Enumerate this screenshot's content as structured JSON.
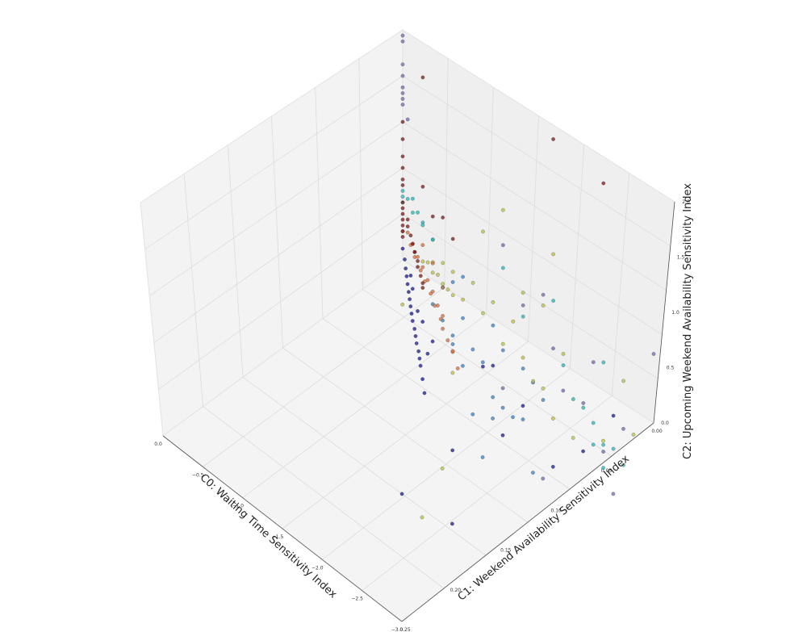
{
  "chart_data": {
    "type": "scatter",
    "projection": "3d",
    "title": "",
    "xlabel": "C0: Waiting Time Sensitivity Index",
    "ylabel": "C1: Weekend Availability Sensitivity Index",
    "zlabel": "C2: Upcoming Weekend Availability Sensitivity Index",
    "xlim": [
      -3.0,
      0.0
    ],
    "ylim": [
      0.0,
      0.25
    ],
    "zlim": [
      0.0,
      2.0
    ],
    "xticks": [
      "0.0",
      "−0.5",
      "−1.0",
      "−1.5",
      "−2.0",
      "−2.5",
      "−3.0"
    ],
    "yticks": [
      "0.00",
      "0.05",
      "0.10",
      "0.15",
      "0.20",
      "0.25"
    ],
    "zticks": [
      "0.0",
      "0.5",
      "1.0",
      "1.5",
      "2.0"
    ],
    "grid": true,
    "legend": "none",
    "colormap": "jet",
    "series": [
      {
        "color": "#1a1a8c",
        "points": [
          [
            -0.05,
            0.0,
            0.15
          ],
          [
            -0.1,
            0.002,
            0.12
          ],
          [
            -0.15,
            0.003,
            0.1
          ],
          [
            -0.2,
            0.004,
            0.09
          ],
          [
            -0.25,
            0.005,
            0.08
          ],
          [
            -0.3,
            0.006,
            0.07
          ],
          [
            -0.35,
            0.007,
            0.065
          ],
          [
            -0.4,
            0.008,
            0.06
          ],
          [
            -0.45,
            0.009,
            0.055
          ],
          [
            -0.5,
            0.01,
            0.05
          ],
          [
            -0.55,
            0.012,
            0.045
          ],
          [
            -0.6,
            0.013,
            0.04
          ],
          [
            -0.65,
            0.014,
            0.035
          ],
          [
            -0.7,
            0.016,
            0.03
          ],
          [
            -0.75,
            0.017,
            0.025
          ],
          [
            -0.8,
            0.018,
            0.02
          ],
          [
            -0.9,
            0.02,
            0.02
          ],
          [
            -1.0,
            0.022,
            0.015
          ],
          [
            -0.42,
            0.015,
            0.08
          ],
          [
            -0.5,
            0.02,
            0.1
          ],
          [
            -0.3,
            0.01,
            0.12
          ],
          [
            -0.6,
            0.03,
            0.09
          ],
          [
            -0.22,
            0.008,
            0.14
          ],
          [
            -0.7,
            0.025,
            0.06
          ],
          [
            -1.5,
            0.05,
            0.2
          ],
          [
            -2.3,
            0.05,
            0.4
          ],
          [
            -0.5,
            0.08,
            0.05
          ],
          [
            -1.2,
            0.1,
            0.3
          ],
          [
            -0.8,
            0.12,
            0.25
          ],
          [
            -1.0,
            0.15,
            0.1
          ],
          [
            -2.8,
            0.0,
            0.9
          ],
          [
            -0.9,
            0.18,
            0.3
          ],
          [
            -0.3,
            0.21,
            0.15
          ],
          [
            -0.6,
            0.09,
            0.22
          ]
        ]
      },
      {
        "color": "#3b82c4",
        "points": [
          [
            -0.3,
            0.03,
            0.1
          ],
          [
            -0.4,
            0.04,
            0.12
          ],
          [
            -0.5,
            0.05,
            0.15
          ],
          [
            -0.6,
            0.05,
            0.18
          ],
          [
            -0.35,
            0.06,
            0.2
          ],
          [
            -0.45,
            0.07,
            0.09
          ],
          [
            -0.25,
            0.04,
            0.25
          ],
          [
            -0.55,
            0.08,
            0.14
          ],
          [
            -0.65,
            0.06,
            0.1
          ],
          [
            -0.7,
            0.09,
            0.05
          ],
          [
            -0.2,
            0.05,
            0.3
          ],
          [
            -0.8,
            0.1,
            0.12
          ],
          [
            -0.9,
            0.11,
            0.2
          ],
          [
            -1.0,
            0.09,
            0.18
          ],
          [
            -0.75,
            0.12,
            0.08
          ],
          [
            -0.15,
            0.06,
            0.35
          ],
          [
            -1.1,
            0.13,
            0.04
          ],
          [
            -0.5,
            0.14,
            0.1
          ],
          [
            -0.3,
            0.12,
            0.05
          ],
          [
            -1.3,
            0.08,
            0.1
          ],
          [
            -0.4,
            0.1,
            0.2
          ],
          [
            -0.6,
            0.13,
            0.3
          ],
          [
            -0.95,
            0.07,
            0.05
          ],
          [
            -0.2,
            0.09,
            0.15
          ]
        ]
      },
      {
        "color": "#2bb3b8",
        "points": [
          [
            0.0,
            0.0,
            0.5
          ],
          [
            0.0,
            0.0,
            0.55
          ],
          [
            0.0,
            0.0,
            0.6
          ],
          [
            -0.02,
            0.005,
            0.58
          ],
          [
            -0.03,
            0.01,
            0.62
          ],
          [
            -0.05,
            0.01,
            0.52
          ],
          [
            -0.04,
            0.02,
            0.48
          ],
          [
            -0.06,
            0.015,
            0.56
          ],
          [
            -0.08,
            0.02,
            0.5
          ],
          [
            -0.1,
            0.03,
            0.45
          ],
          [
            -0.05,
            0.03,
            0.4
          ],
          [
            -0.3,
            0.18,
            0.05
          ],
          [
            -0.4,
            0.19,
            0.08
          ],
          [
            -0.5,
            0.2,
            0.05
          ],
          [
            -0.6,
            0.19,
            0.1
          ],
          [
            -0.45,
            0.21,
            0.02
          ],
          [
            -0.35,
            0.17,
            0.12
          ],
          [
            -0.7,
            0.2,
            0.06
          ],
          [
            -0.2,
            0.16,
            0.2
          ],
          [
            -0.55,
            0.22,
            0.04
          ],
          [
            -0.15,
            0.2,
            0.4
          ],
          [
            -0.1,
            0.15,
            0.6
          ],
          [
            -0.25,
            0.12,
            0.45
          ],
          [
            -0.05,
            0.1,
            0.55
          ]
        ]
      },
      {
        "color": "#b9bd45",
        "points": [
          [
            0.0,
            0.02,
            0.1
          ],
          [
            0.0,
            0.025,
            0.12
          ],
          [
            0.0,
            0.03,
            0.15
          ],
          [
            -0.02,
            0.03,
            0.08
          ],
          [
            -0.03,
            0.035,
            0.1
          ],
          [
            -0.04,
            0.04,
            0.06
          ],
          [
            -0.05,
            0.045,
            0.05
          ],
          [
            -0.06,
            0.05,
            0.04
          ],
          [
            0.0,
            0.04,
            0.2
          ],
          [
            0.0,
            0.05,
            0.18
          ],
          [
            -0.1,
            0.06,
            0.1
          ],
          [
            -0.05,
            0.07,
            0.25
          ],
          [
            -0.2,
            0.08,
            0.2
          ],
          [
            -0.15,
            0.09,
            0.3
          ],
          [
            -0.3,
            0.1,
            0.15
          ],
          [
            -0.25,
            0.11,
            0.35
          ],
          [
            -0.4,
            0.12,
            0.25
          ],
          [
            -0.35,
            0.13,
            0.05
          ],
          [
            -0.5,
            0.14,
            0.2
          ],
          [
            -0.6,
            0.15,
            0.1
          ],
          [
            -0.1,
            0.12,
            0.5
          ],
          [
            -0.05,
            0.14,
            0.45
          ],
          [
            -0.2,
            0.16,
            0.3
          ],
          [
            -0.7,
            0.17,
            0.15
          ],
          [
            -2.6,
            0.02,
            0.6
          ],
          [
            -0.8,
            0.0,
            0.45
          ],
          [
            -1.8,
            0.04,
            0.3
          ],
          [
            -1.0,
            0.05,
            0.35
          ],
          [
            -0.8,
            0.2,
            0.4
          ],
          [
            -0.3,
            0.23,
            0.1
          ],
          [
            0.0,
            0.15,
            0.9
          ],
          [
            0.0,
            0.1,
            1.0
          ],
          [
            0.0,
            0.08,
            0.7
          ],
          [
            -0.1,
            0.22,
            0.3
          ]
        ]
      },
      {
        "color": "#d36f3f",
        "points": [
          [
            -0.05,
            0.0,
            0.3
          ],
          [
            -0.08,
            0.005,
            0.35
          ],
          [
            -0.1,
            0.008,
            0.28
          ],
          [
            -0.12,
            0.01,
            0.32
          ],
          [
            -0.15,
            0.012,
            0.25
          ],
          [
            -0.18,
            0.015,
            0.3
          ],
          [
            -0.2,
            0.018,
            0.22
          ],
          [
            -0.22,
            0.02,
            0.28
          ],
          [
            -0.25,
            0.022,
            0.2
          ],
          [
            -0.28,
            0.025,
            0.26
          ],
          [
            -0.3,
            0.028,
            0.18
          ],
          [
            -0.33,
            0.03,
            0.24
          ],
          [
            -0.35,
            0.032,
            0.15
          ],
          [
            -0.38,
            0.035,
            0.2
          ],
          [
            -0.4,
            0.038,
            0.12
          ],
          [
            -0.42,
            0.04,
            0.18
          ],
          [
            -0.45,
            0.04,
            0.1
          ],
          [
            -0.5,
            0.045,
            0.08
          ],
          [
            -0.55,
            0.05,
            0.06
          ],
          [
            -0.6,
            0.05,
            0.12
          ],
          [
            -0.65,
            0.055,
            0.05
          ],
          [
            -0.2,
            0.03,
            0.35
          ],
          [
            -0.3,
            0.04,
            0.3
          ],
          [
            -0.15,
            0.02,
            0.4
          ]
        ]
      },
      {
        "color": "#7a1a1a",
        "points": [
          [
            0.0,
            0.0,
            0.35
          ],
          [
            0.0,
            0.0,
            0.4
          ],
          [
            0.0,
            0.0,
            0.45
          ],
          [
            0.0,
            0.0,
            0.3
          ],
          [
            0.0,
            0.0,
            0.25
          ],
          [
            0.0,
            0.0,
            0.2
          ],
          [
            0.0,
            0.0,
            0.5
          ],
          [
            0.0,
            0.0,
            0.65
          ],
          [
            0.0,
            0.0,
            0.7
          ],
          [
            0.0,
            0.0,
            0.8
          ],
          [
            0.0,
            0.0,
            0.9
          ],
          [
            -0.02,
            0.005,
            0.4
          ],
          [
            -0.03,
            0.005,
            0.35
          ],
          [
            -0.04,
            0.008,
            0.3
          ],
          [
            -0.05,
            0.01,
            0.25
          ],
          [
            -0.06,
            0.012,
            0.2
          ],
          [
            -0.08,
            0.012,
            0.22
          ],
          [
            -0.1,
            0.015,
            0.18
          ],
          [
            -0.12,
            0.015,
            0.15
          ],
          [
            -0.15,
            0.018,
            0.12
          ],
          [
            -0.18,
            0.02,
            0.1
          ],
          [
            -0.2,
            0.02,
            0.08
          ],
          [
            -0.05,
            0.03,
            0.6
          ],
          [
            -0.1,
            0.04,
            0.7
          ],
          [
            0.0,
            0.02,
            0.75
          ],
          [
            -0.08,
            0.05,
            0.55
          ],
          [
            0.0,
            0.0,
            1.05
          ],
          [
            0.0,
            0.0,
            1.2
          ],
          [
            0.0,
            0.2,
            1.8
          ],
          [
            0.0,
            0.15,
            1.9
          ],
          [
            0.0,
            0.02,
            1.7
          ]
        ]
      },
      {
        "color": "#6e6ab0",
        "points": [
          [
            0.0,
            0.0,
            1.5
          ],
          [
            0.0,
            0.0,
            1.45
          ],
          [
            0.0,
            0.0,
            1.4
          ],
          [
            0.0,
            0.0,
            1.6
          ],
          [
            0.0,
            0.0,
            1.35
          ],
          [
            0.0,
            0.0,
            1.7
          ],
          [
            0.0,
            0.0,
            1.9
          ],
          [
            0.0,
            0.0,
            1.95
          ],
          [
            0.0,
            0.005,
            1.25
          ],
          [
            -0.3,
            0.12,
            0.6
          ],
          [
            -0.4,
            0.15,
            0.5
          ],
          [
            -0.2,
            0.14,
            0.7
          ],
          [
            -0.5,
            0.18,
            0.3
          ],
          [
            -0.6,
            0.16,
            0.4
          ],
          [
            -0.1,
            0.1,
            0.8
          ],
          [
            -0.7,
            0.2,
            0.2
          ],
          [
            -0.45,
            0.22,
            0.25
          ],
          [
            -0.25,
            0.19,
            0.45
          ],
          [
            -1.2,
            0.14,
            0.15
          ],
          [
            -1.0,
            0.1,
            0.5
          ],
          [
            -0.9,
            0.21,
            0.1
          ],
          [
            0.0,
            0.25,
            0.6
          ]
        ]
      }
    ]
  }
}
